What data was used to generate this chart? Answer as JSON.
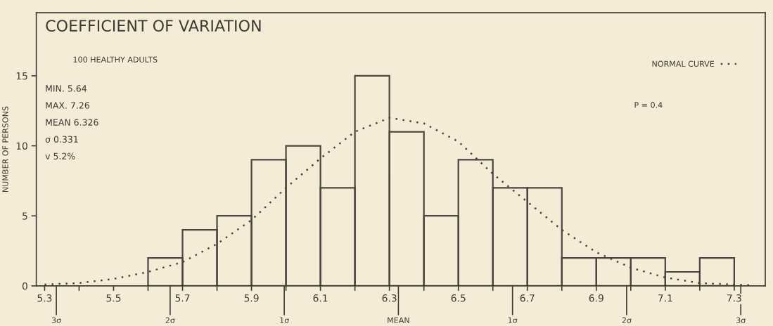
{
  "chart_data": {
    "type": "histogram",
    "title": "COEFFICIENT OF VARIATION",
    "subtitle": "100 HEALTHY ADULTS",
    "ylabel": "NUMBER OF PERSONS",
    "bins": [
      5.6,
      5.7,
      5.8,
      5.9,
      6.0,
      6.1,
      6.2,
      6.3,
      6.4,
      6.5,
      6.6,
      6.7,
      6.8,
      6.9,
      7.0,
      7.1,
      7.2,
      7.3
    ],
    "values": [
      2,
      4,
      5,
      9,
      10,
      7,
      15,
      11,
      5,
      9,
      7,
      7,
      2,
      2,
      2,
      1,
      2
    ],
    "color": "#4a463f",
    "series": [
      {
        "name": "NORMAL CURVE",
        "type": "line",
        "color": "#4a463f",
        "line_style": "dotted",
        "x": [
          5.3,
          5.4,
          5.5,
          5.6,
          5.7,
          5.8,
          5.9,
          6.0,
          6.1,
          6.2,
          6.3,
          6.4,
          6.5,
          6.6,
          6.7,
          6.8,
          6.9,
          7.0,
          7.1,
          7.2,
          7.3,
          7.35
        ],
        "values": [
          0.1,
          0.2,
          0.5,
          1.0,
          1.7,
          3.0,
          4.7,
          7.0,
          9.1,
          11.0,
          12.0,
          11.6,
          10.3,
          8.0,
          6.0,
          4.0,
          2.4,
          1.3,
          0.6,
          0.2,
          0.1,
          0.05
        ]
      }
    ],
    "annotations": [
      "MIN. 5.64",
      "MAX. 7.26",
      "MEAN 6.326",
      "σ 0.331",
      "v 5.2%",
      "P = 0.4",
      {
        "text": "3σ",
        "x": 5.334,
        "y": 0
      },
      {
        "text": "2σ",
        "x": 5.664,
        "y": 0
      },
      {
        "text": "1σ",
        "x": 5.995,
        "y": 0
      },
      {
        "text": "MEAN",
        "x": 6.326,
        "y": 0
      },
      {
        "text": "1σ",
        "x": 6.657,
        "y": 0
      },
      {
        "text": "2σ",
        "x": 6.988,
        "y": 0
      },
      {
        "text": "3σ",
        "x": 7.319,
        "y": 0
      }
    ],
    "xlim": [
      5.276,
      7.39
    ],
    "ylim": [
      0,
      19.5
    ],
    "xticks": [
      5.3,
      {
        "value": 5.4,
        "label": null
      },
      5.5,
      {
        "value": 5.6,
        "label": null
      },
      5.7,
      {
        "value": 5.8,
        "label": null
      },
      5.9,
      {
        "value": 6.0,
        "label": null
      },
      6.1,
      {
        "value": 6.2,
        "label": null
      },
      6.3,
      {
        "value": 6.4,
        "label": null
      },
      6.5,
      {
        "value": 6.6,
        "label": null
      },
      6.7,
      {
        "value": 6.8,
        "label": null
      },
      6.9,
      {
        "value": 7.0,
        "label": null
      },
      7.1,
      {
        "value": 7.2,
        "label": null
      },
      7.3
    ],
    "yticks": [
      0,
      5,
      10,
      15
    ],
    "grid": false,
    "legend": "top right"
  }
}
